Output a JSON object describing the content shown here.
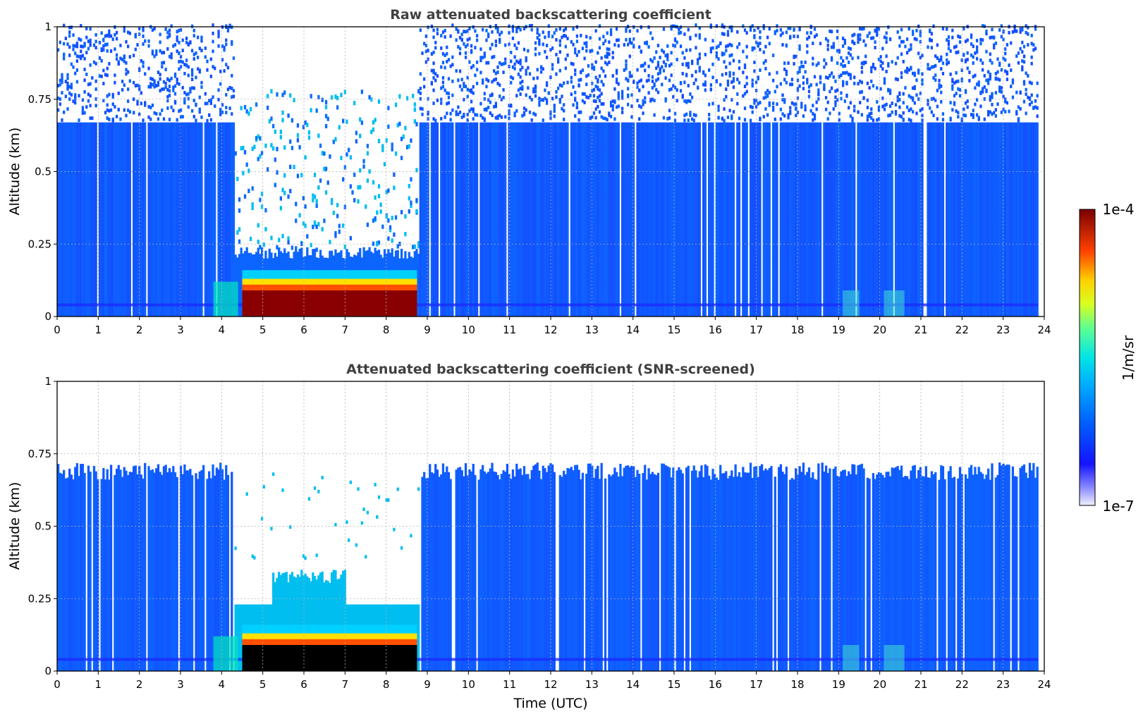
{
  "chart_data": [
    {
      "type": "heatmap",
      "title": "Raw attenuated backscattering coefficient",
      "xlabel": "",
      "ylabel": "Altitude (km)",
      "xlim": [
        0,
        24
      ],
      "ylim": [
        0,
        1
      ],
      "xticks": [
        "0",
        "1",
        "2",
        "3",
        "4",
        "5",
        "6",
        "7",
        "8",
        "9",
        "10",
        "11",
        "12",
        "13",
        "14",
        "15",
        "16",
        "17",
        "18",
        "19",
        "20",
        "21",
        "22",
        "23",
        "24"
      ],
      "yticks": [
        "0",
        "0.25",
        "0.5",
        "0.75",
        "1"
      ],
      "grid": true,
      "features": {
        "data_time_range_utc": [
          0.0,
          23.85
        ],
        "clear_gap_utc": [
          4.3,
          8.8
        ],
        "low_aerosol_layer_km": [
          0.0,
          0.15
        ],
        "noise_top_km": 1.0,
        "dense_signal_top_km": 0.67,
        "bright_band_altitude_km": 0.04
      }
    },
    {
      "type": "heatmap",
      "title": "Attenuated backscattering coefficient (SNR-screened)",
      "xlabel": "Time (UTC)",
      "ylabel": "Altitude (km)",
      "xlim": [
        0,
        24
      ],
      "ylim": [
        0,
        1
      ],
      "xticks": [
        "0",
        "1",
        "2",
        "3",
        "4",
        "5",
        "6",
        "7",
        "8",
        "9",
        "10",
        "11",
        "12",
        "13",
        "14",
        "15",
        "16",
        "17",
        "18",
        "19",
        "20",
        "21",
        "22",
        "23",
        "24"
      ],
      "yticks": [
        "0",
        "0.25",
        "0.5",
        "0.75",
        "1"
      ],
      "grid": true,
      "features": {
        "data_time_range_utc": [
          0.0,
          23.85
        ],
        "screened_top_km": 0.7,
        "gap_floor_km": 0.23,
        "saturated_layer_km": [
          0.0,
          0.1
        ]
      }
    }
  ],
  "colorbar": {
    "label": "1/m/sr",
    "max_label": "1e-4",
    "min_label": "1e-7",
    "colors": [
      "#ececfc",
      "#1a1aff",
      "#0066ff",
      "#00c8ff",
      "#7fff7f",
      "#ffd700",
      "#ff4500",
      "#800000"
    ]
  }
}
